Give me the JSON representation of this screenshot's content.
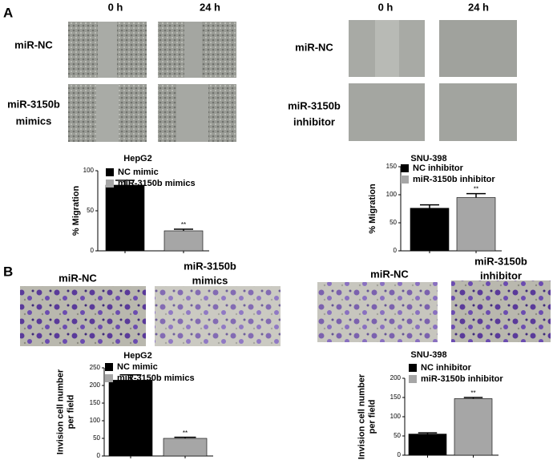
{
  "labels": {
    "panel_a": "A",
    "panel_b": "B",
    "a_left_0h": "0 h",
    "a_left_24h": "24 h",
    "a_right_0h": "0 h",
    "a_right_24h": "24 h",
    "a_left_row1": "miR-NC",
    "a_left_row2": [
      "miR-3150b",
      "mimics"
    ],
    "a_right_row1": "miR-NC",
    "a_right_row2": [
      "miR-3150b",
      "inhibitor"
    ],
    "b_left_col1": "miR-NC",
    "b_left_col2": [
      "miR-3150b",
      "mimics"
    ],
    "b_right_col1": "miR-NC",
    "b_right_col2": [
      "miR-3150b",
      "inhibitor"
    ]
  },
  "chart_data": [
    {
      "type": "bar",
      "title": "HepG2",
      "ylabel": [
        "% Migration"
      ],
      "ylim": [
        0,
        100
      ],
      "yticks": [
        0,
        50,
        100
      ],
      "annotation": "**",
      "series": [
        {
          "name": "NC mimic",
          "color": "#000000",
          "values": [
            82
          ],
          "errors": [
            6
          ]
        },
        {
          "name": "miR-3150b mimics",
          "color": "#a6a6a6",
          "values": [
            25
          ],
          "errors": [
            2
          ]
        }
      ]
    },
    {
      "type": "bar",
      "title": "SNU-398",
      "ylabel": [
        "% Migration"
      ],
      "ylim": [
        0,
        150
      ],
      "yticks": [
        0,
        50,
        100,
        150
      ],
      "annotation": "**",
      "series": [
        {
          "name": "NC inhibitor",
          "color": "#000000",
          "values": [
            76
          ],
          "errors": [
            6
          ]
        },
        {
          "name": "miR-3150b inhibitor",
          "color": "#a6a6a6",
          "values": [
            95
          ],
          "errors": [
            7
          ]
        }
      ]
    },
    {
      "type": "bar",
      "title": "HepG2",
      "ylabel": [
        "Invision cell number",
        "per field"
      ],
      "ylim": [
        0,
        250
      ],
      "yticks": [
        0,
        50,
        100,
        150,
        200,
        250
      ],
      "annotation": "**",
      "series": [
        {
          "name": "NC mimic",
          "color": "#000000",
          "values": [
            215
          ],
          "errors": [
            15
          ]
        },
        {
          "name": "miR-3150b mimics",
          "color": "#a6a6a6",
          "values": [
            50
          ],
          "errors": [
            3
          ]
        }
      ]
    },
    {
      "type": "bar",
      "title": "SNU-398",
      "ylabel": [
        "Invision cell number",
        "per field"
      ],
      "ylim": [
        0,
        200
      ],
      "yticks": [
        0,
        50,
        100,
        150,
        200
      ],
      "annotation": "**",
      "series": [
        {
          "name": "NC inhibitor",
          "color": "#000000",
          "values": [
            55
          ],
          "errors": [
            3
          ]
        },
        {
          "name": "miR-3150b inhibitor",
          "color": "#a6a6a6",
          "values": [
            147
          ],
          "errors": [
            3
          ]
        }
      ]
    }
  ]
}
